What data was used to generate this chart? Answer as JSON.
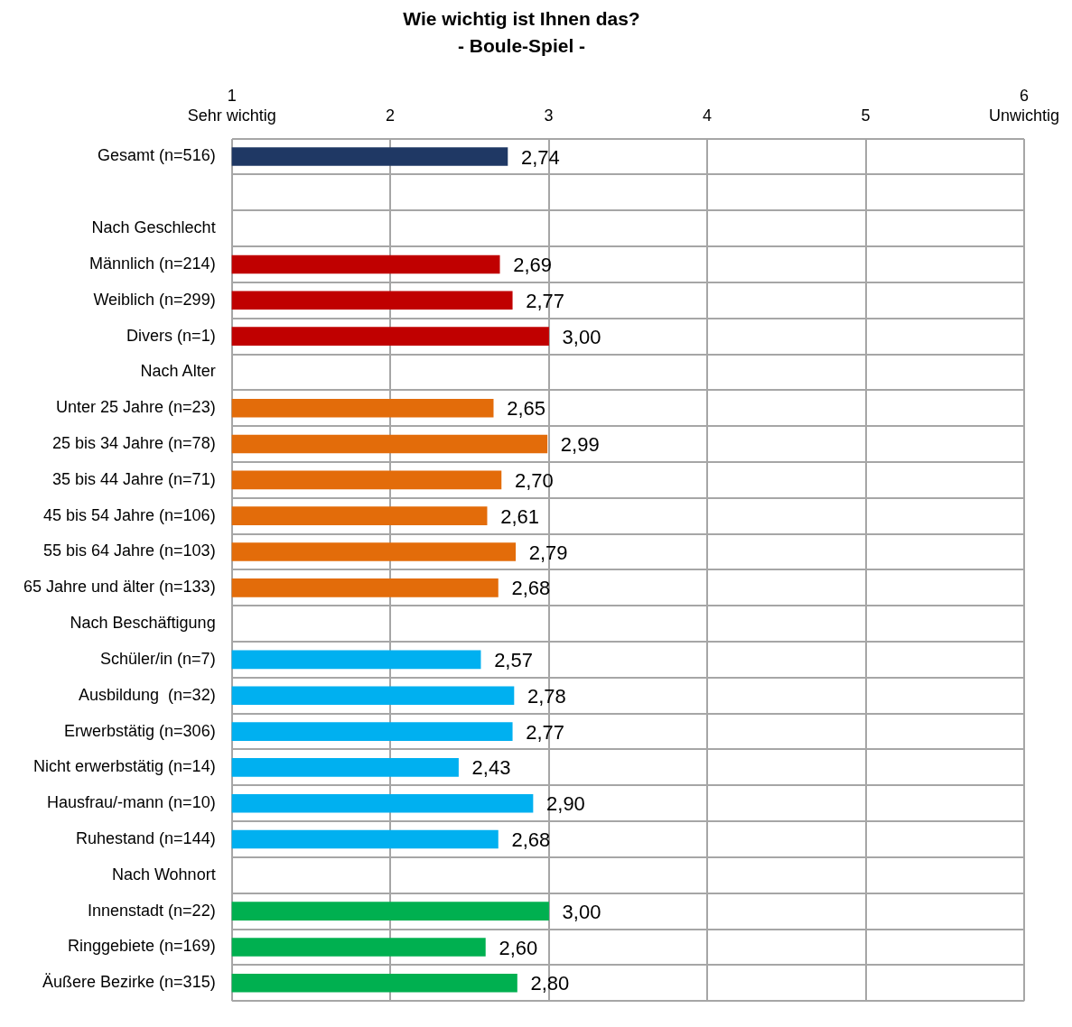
{
  "chart_data": {
    "type": "bar",
    "orientation": "horizontal",
    "title": "Wie wichtig ist Ihnen das?",
    "subtitle": "- Boule-Spiel -",
    "categories": [
      "Gesamt (n=516)",
      null,
      "Nach Geschlecht",
      "Männlich (n=214)",
      "Weiblich (n=299)",
      "Divers (n=1)",
      "Nach Alter",
      "Unter 25 Jahre (n=23)",
      "25 bis 34 Jahre (n=78)",
      "35 bis 44 Jahre (n=71)",
      "45 bis 54 Jahre (n=106)",
      "55 bis 64 Jahre (n=103)",
      "65 Jahre und älter (n=133)",
      "Nach Beschäftigung",
      "Schüler/in (n=7)",
      "Ausbildung  (n=32)",
      "Erwerbstätig (n=306)",
      "Nicht erwerbstätig (n=14)",
      "Hausfrau/-mann (n=10)",
      "Ruhestand (n=144)",
      "Nach Wohnort",
      "Innenstadt (n=22)",
      "Ringgebiete (n=169)",
      "Äußere Bezirke (n=315)"
    ],
    "values": [
      2.74,
      null,
      null,
      2.69,
      2.77,
      3.0,
      null,
      2.65,
      2.99,
      2.7,
      2.61,
      2.79,
      2.68,
      null,
      2.57,
      2.78,
      2.77,
      2.43,
      2.9,
      2.68,
      null,
      3.0,
      2.6,
      2.8
    ],
    "colors": [
      "#1f3864",
      null,
      null,
      "#c00000",
      "#c00000",
      "#c00000",
      null,
      "#e36c0a",
      "#e36c0a",
      "#e36c0a",
      "#e36c0a",
      "#e36c0a",
      "#e36c0a",
      null,
      "#00b0f0",
      "#00b0f0",
      "#00b0f0",
      "#00b0f0",
      "#00b0f0",
      "#00b0f0",
      null,
      "#00b050",
      "#00b050",
      "#00b050"
    ],
    "value_labels": [
      "2,74",
      null,
      null,
      "2,69",
      "2,77",
      "3,00",
      null,
      "2,65",
      "2,99",
      "2,70",
      "2,61",
      "2,79",
      "2,68",
      null,
      "2,57",
      "2,78",
      "2,77",
      "2,43",
      "2,90",
      "2,68",
      null,
      "3,00",
      "2,60",
      "2,80"
    ],
    "xlim": [
      1,
      6
    ],
    "xticks": [
      {
        "value": 1,
        "label": "1\nSehr wichtig"
      },
      2,
      3,
      4,
      5,
      {
        "value": 6,
        "label": "6\nUnwichtig"
      }
    ],
    "grid": true,
    "legend": false
  }
}
